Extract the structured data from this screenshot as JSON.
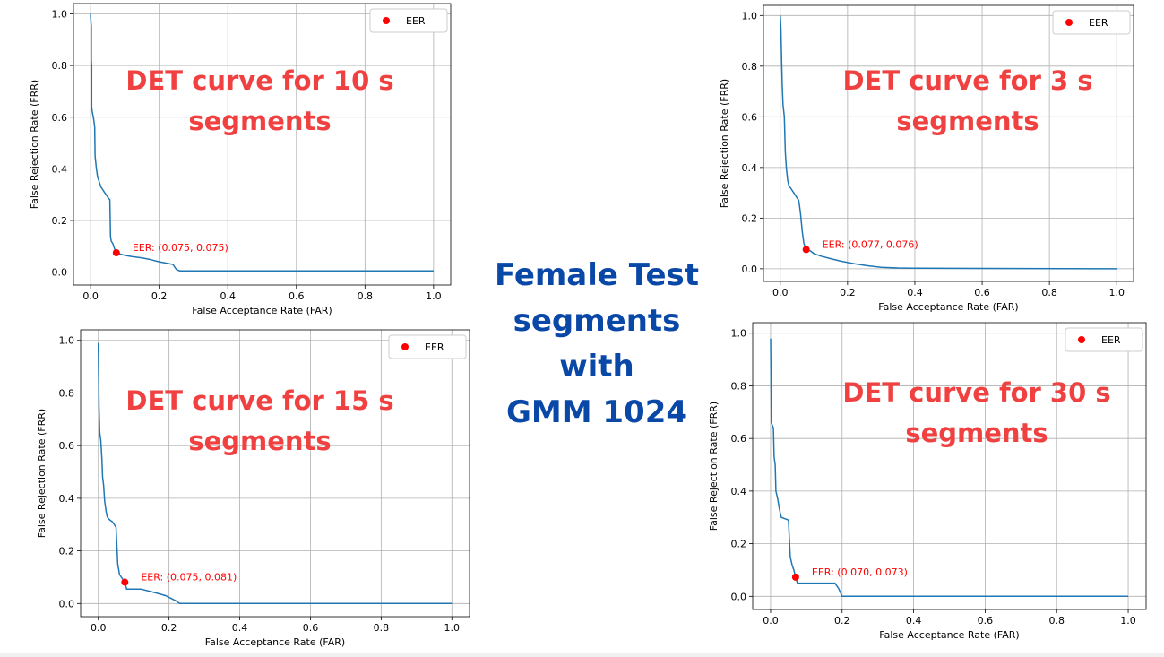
{
  "center_title": {
    "line1": "Female Test",
    "line2": "segments with",
    "line3": "GMM 1024"
  },
  "colors": {
    "curve": "#1f77b4",
    "eer_point": "#ff0000",
    "overlay_title": "#f04040",
    "center_title": "#0a48a8"
  },
  "chart_data": [
    {
      "id": "p10",
      "type": "line",
      "overlay_title_line1": "DET curve for 10 s",
      "overlay_title_line2": "segments",
      "xlabel": "False Acceptance Rate (FAR)",
      "ylabel": "False Rejection Rate (FRR)",
      "xlim": [
        -0.05,
        1.05
      ],
      "ylim": [
        -0.05,
        1.04
      ],
      "xticks": [
        0.0,
        0.2,
        0.4,
        0.6,
        0.8,
        1.0
      ],
      "xtick_labels": [
        "0.0",
        "0.2",
        "0.4",
        "0.6",
        "0.8",
        "1.0"
      ],
      "yticks": [
        0.0,
        0.2,
        0.4,
        0.6,
        0.8,
        1.0
      ],
      "ytick_labels": [
        "0.0",
        "0.2",
        "0.4",
        "0.6",
        "0.8",
        "1.0"
      ],
      "grid": true,
      "legend": {
        "label": "EER",
        "placement": "top-right"
      },
      "eer": {
        "far": 0.075,
        "frr": 0.075,
        "label": "EER: (0.075, 0.075)"
      },
      "curve": [
        [
          0.0,
          1.0
        ],
        [
          0.0,
          0.99
        ],
        [
          0.002,
          0.95
        ],
        [
          0.002,
          0.82
        ],
        [
          0.003,
          0.8
        ],
        [
          0.003,
          0.64
        ],
        [
          0.005,
          0.62
        ],
        [
          0.008,
          0.6
        ],
        [
          0.01,
          0.58
        ],
        [
          0.012,
          0.56
        ],
        [
          0.013,
          0.45
        ],
        [
          0.016,
          0.41
        ],
        [
          0.02,
          0.37
        ],
        [
          0.025,
          0.35
        ],
        [
          0.03,
          0.33
        ],
        [
          0.035,
          0.32
        ],
        [
          0.04,
          0.31
        ],
        [
          0.045,
          0.3
        ],
        [
          0.05,
          0.29
        ],
        [
          0.056,
          0.28
        ],
        [
          0.058,
          0.14
        ],
        [
          0.06,
          0.12
        ],
        [
          0.065,
          0.11
        ],
        [
          0.07,
          0.09
        ],
        [
          0.075,
          0.075
        ],
        [
          0.085,
          0.07
        ],
        [
          0.1,
          0.065
        ],
        [
          0.12,
          0.06
        ],
        [
          0.15,
          0.055
        ],
        [
          0.17,
          0.05
        ],
        [
          0.2,
          0.04
        ],
        [
          0.22,
          0.035
        ],
        [
          0.24,
          0.03
        ],
        [
          0.25,
          0.01
        ],
        [
          0.26,
          0.005
        ],
        [
          1.0,
          0.005
        ]
      ]
    },
    {
      "id": "p3",
      "type": "line",
      "overlay_title_line1": "DET curve for 3 s",
      "overlay_title_line2": "segments",
      "xlabel": "False Acceptance Rate (FAR)",
      "ylabel": "False Rejection Rate (FRR)",
      "xlim": [
        -0.05,
        1.05
      ],
      "ylim": [
        -0.05,
        1.04
      ],
      "xticks": [
        0.0,
        0.2,
        0.4,
        0.6,
        0.8,
        1.0
      ],
      "xtick_labels": [
        "0.0",
        "0.2",
        "0.4",
        "0.6",
        "0.8",
        "1.0"
      ],
      "yticks": [
        0.0,
        0.2,
        0.4,
        0.6,
        0.8,
        1.0
      ],
      "ytick_labels": [
        "0.0",
        "0.2",
        "0.4",
        "0.6",
        "0.8",
        "1.0"
      ],
      "grid": true,
      "legend": {
        "label": "EER",
        "placement": "top-right"
      },
      "eer": {
        "far": 0.077,
        "frr": 0.076,
        "label": "EER: (0.077, 0.076)"
      },
      "curve": [
        [
          0.0,
          1.0
        ],
        [
          0.002,
          0.95
        ],
        [
          0.004,
          0.82
        ],
        [
          0.006,
          0.72
        ],
        [
          0.008,
          0.65
        ],
        [
          0.012,
          0.6
        ],
        [
          0.015,
          0.46
        ],
        [
          0.018,
          0.4
        ],
        [
          0.022,
          0.35
        ],
        [
          0.025,
          0.33
        ],
        [
          0.03,
          0.32
        ],
        [
          0.04,
          0.3
        ],
        [
          0.05,
          0.28
        ],
        [
          0.055,
          0.27
        ],
        [
          0.06,
          0.22
        ],
        [
          0.065,
          0.15
        ],
        [
          0.07,
          0.1
        ],
        [
          0.077,
          0.076
        ],
        [
          0.09,
          0.07
        ],
        [
          0.1,
          0.06
        ],
        [
          0.12,
          0.05
        ],
        [
          0.15,
          0.04
        ],
        [
          0.18,
          0.03
        ],
        [
          0.22,
          0.02
        ],
        [
          0.26,
          0.012
        ],
        [
          0.3,
          0.006
        ],
        [
          0.35,
          0.003
        ],
        [
          0.4,
          0.002
        ],
        [
          1.0,
          0.0
        ]
      ]
    },
    {
      "id": "p15",
      "type": "line",
      "overlay_title_line1": "DET curve for 15 s",
      "overlay_title_line2": "segments",
      "xlabel": "False Acceptance Rate (FAR)",
      "ylabel": "False Rejection Rate (FRR)",
      "xlim": [
        -0.05,
        1.05
      ],
      "ylim": [
        -0.05,
        1.04
      ],
      "xticks": [
        0.0,
        0.2,
        0.4,
        0.6,
        0.8,
        1.0
      ],
      "xtick_labels": [
        "0.0",
        "0.2",
        "0.4",
        "0.6",
        "0.8",
        "1.0"
      ],
      "yticks": [
        0.0,
        0.2,
        0.4,
        0.6,
        0.8,
        1.0
      ],
      "ytick_labels": [
        "0.0",
        "0.2",
        "0.4",
        "0.6",
        "0.8",
        "1.0"
      ],
      "grid": true,
      "legend": {
        "label": "EER",
        "placement": "top-right"
      },
      "eer": {
        "far": 0.075,
        "frr": 0.081,
        "label": "EER: (0.075, 0.081)"
      },
      "curve": [
        [
          0.0,
          0.99
        ],
        [
          0.002,
          0.75
        ],
        [
          0.004,
          0.65
        ],
        [
          0.007,
          0.62
        ],
        [
          0.01,
          0.55
        ],
        [
          0.012,
          0.48
        ],
        [
          0.015,
          0.45
        ],
        [
          0.018,
          0.39
        ],
        [
          0.022,
          0.35
        ],
        [
          0.025,
          0.33
        ],
        [
          0.03,
          0.32
        ],
        [
          0.04,
          0.31
        ],
        [
          0.045,
          0.3
        ],
        [
          0.05,
          0.29
        ],
        [
          0.055,
          0.15
        ],
        [
          0.06,
          0.11
        ],
        [
          0.065,
          0.1
        ],
        [
          0.075,
          0.081
        ],
        [
          0.08,
          0.055
        ],
        [
          0.12,
          0.055
        ],
        [
          0.15,
          0.045
        ],
        [
          0.19,
          0.03
        ],
        [
          0.22,
          0.01
        ],
        [
          0.23,
          0.0
        ],
        [
          1.0,
          0.0
        ]
      ]
    },
    {
      "id": "p30",
      "type": "line",
      "overlay_title_line1": "DET curve for 30 s",
      "overlay_title_line2": "segments",
      "xlabel": "False Acceptance Rate (FAR)",
      "ylabel": "False Rejection Rate (FRR)",
      "xlim": [
        -0.05,
        1.05
      ],
      "ylim": [
        -0.05,
        1.04
      ],
      "xticks": [
        0.0,
        0.2,
        0.4,
        0.6,
        0.8,
        1.0
      ],
      "xtick_labels": [
        "0.0",
        "0.2",
        "0.4",
        "0.6",
        "0.8",
        "1.0"
      ],
      "yticks": [
        0.0,
        0.2,
        0.4,
        0.6,
        0.8,
        1.0
      ],
      "ytick_labels": [
        "0.0",
        "0.2",
        "0.4",
        "0.6",
        "0.8",
        "1.0"
      ],
      "grid": true,
      "legend": {
        "label": "EER",
        "placement": "top-right"
      },
      "eer": {
        "far": 0.07,
        "frr": 0.073,
        "label": "EER: (0.070, 0.073)"
      },
      "curve": [
        [
          0.0,
          0.98
        ],
        [
          0.002,
          0.66
        ],
        [
          0.008,
          0.64
        ],
        [
          0.01,
          0.53
        ],
        [
          0.013,
          0.5
        ],
        [
          0.015,
          0.4
        ],
        [
          0.02,
          0.37
        ],
        [
          0.025,
          0.33
        ],
        [
          0.03,
          0.3
        ],
        [
          0.05,
          0.29
        ],
        [
          0.055,
          0.15
        ],
        [
          0.06,
          0.12
        ],
        [
          0.065,
          0.1
        ],
        [
          0.07,
          0.073
        ],
        [
          0.075,
          0.05
        ],
        [
          0.18,
          0.05
        ],
        [
          0.19,
          0.03
        ],
        [
          0.2,
          0.0
        ],
        [
          1.0,
          0.0
        ]
      ]
    }
  ]
}
